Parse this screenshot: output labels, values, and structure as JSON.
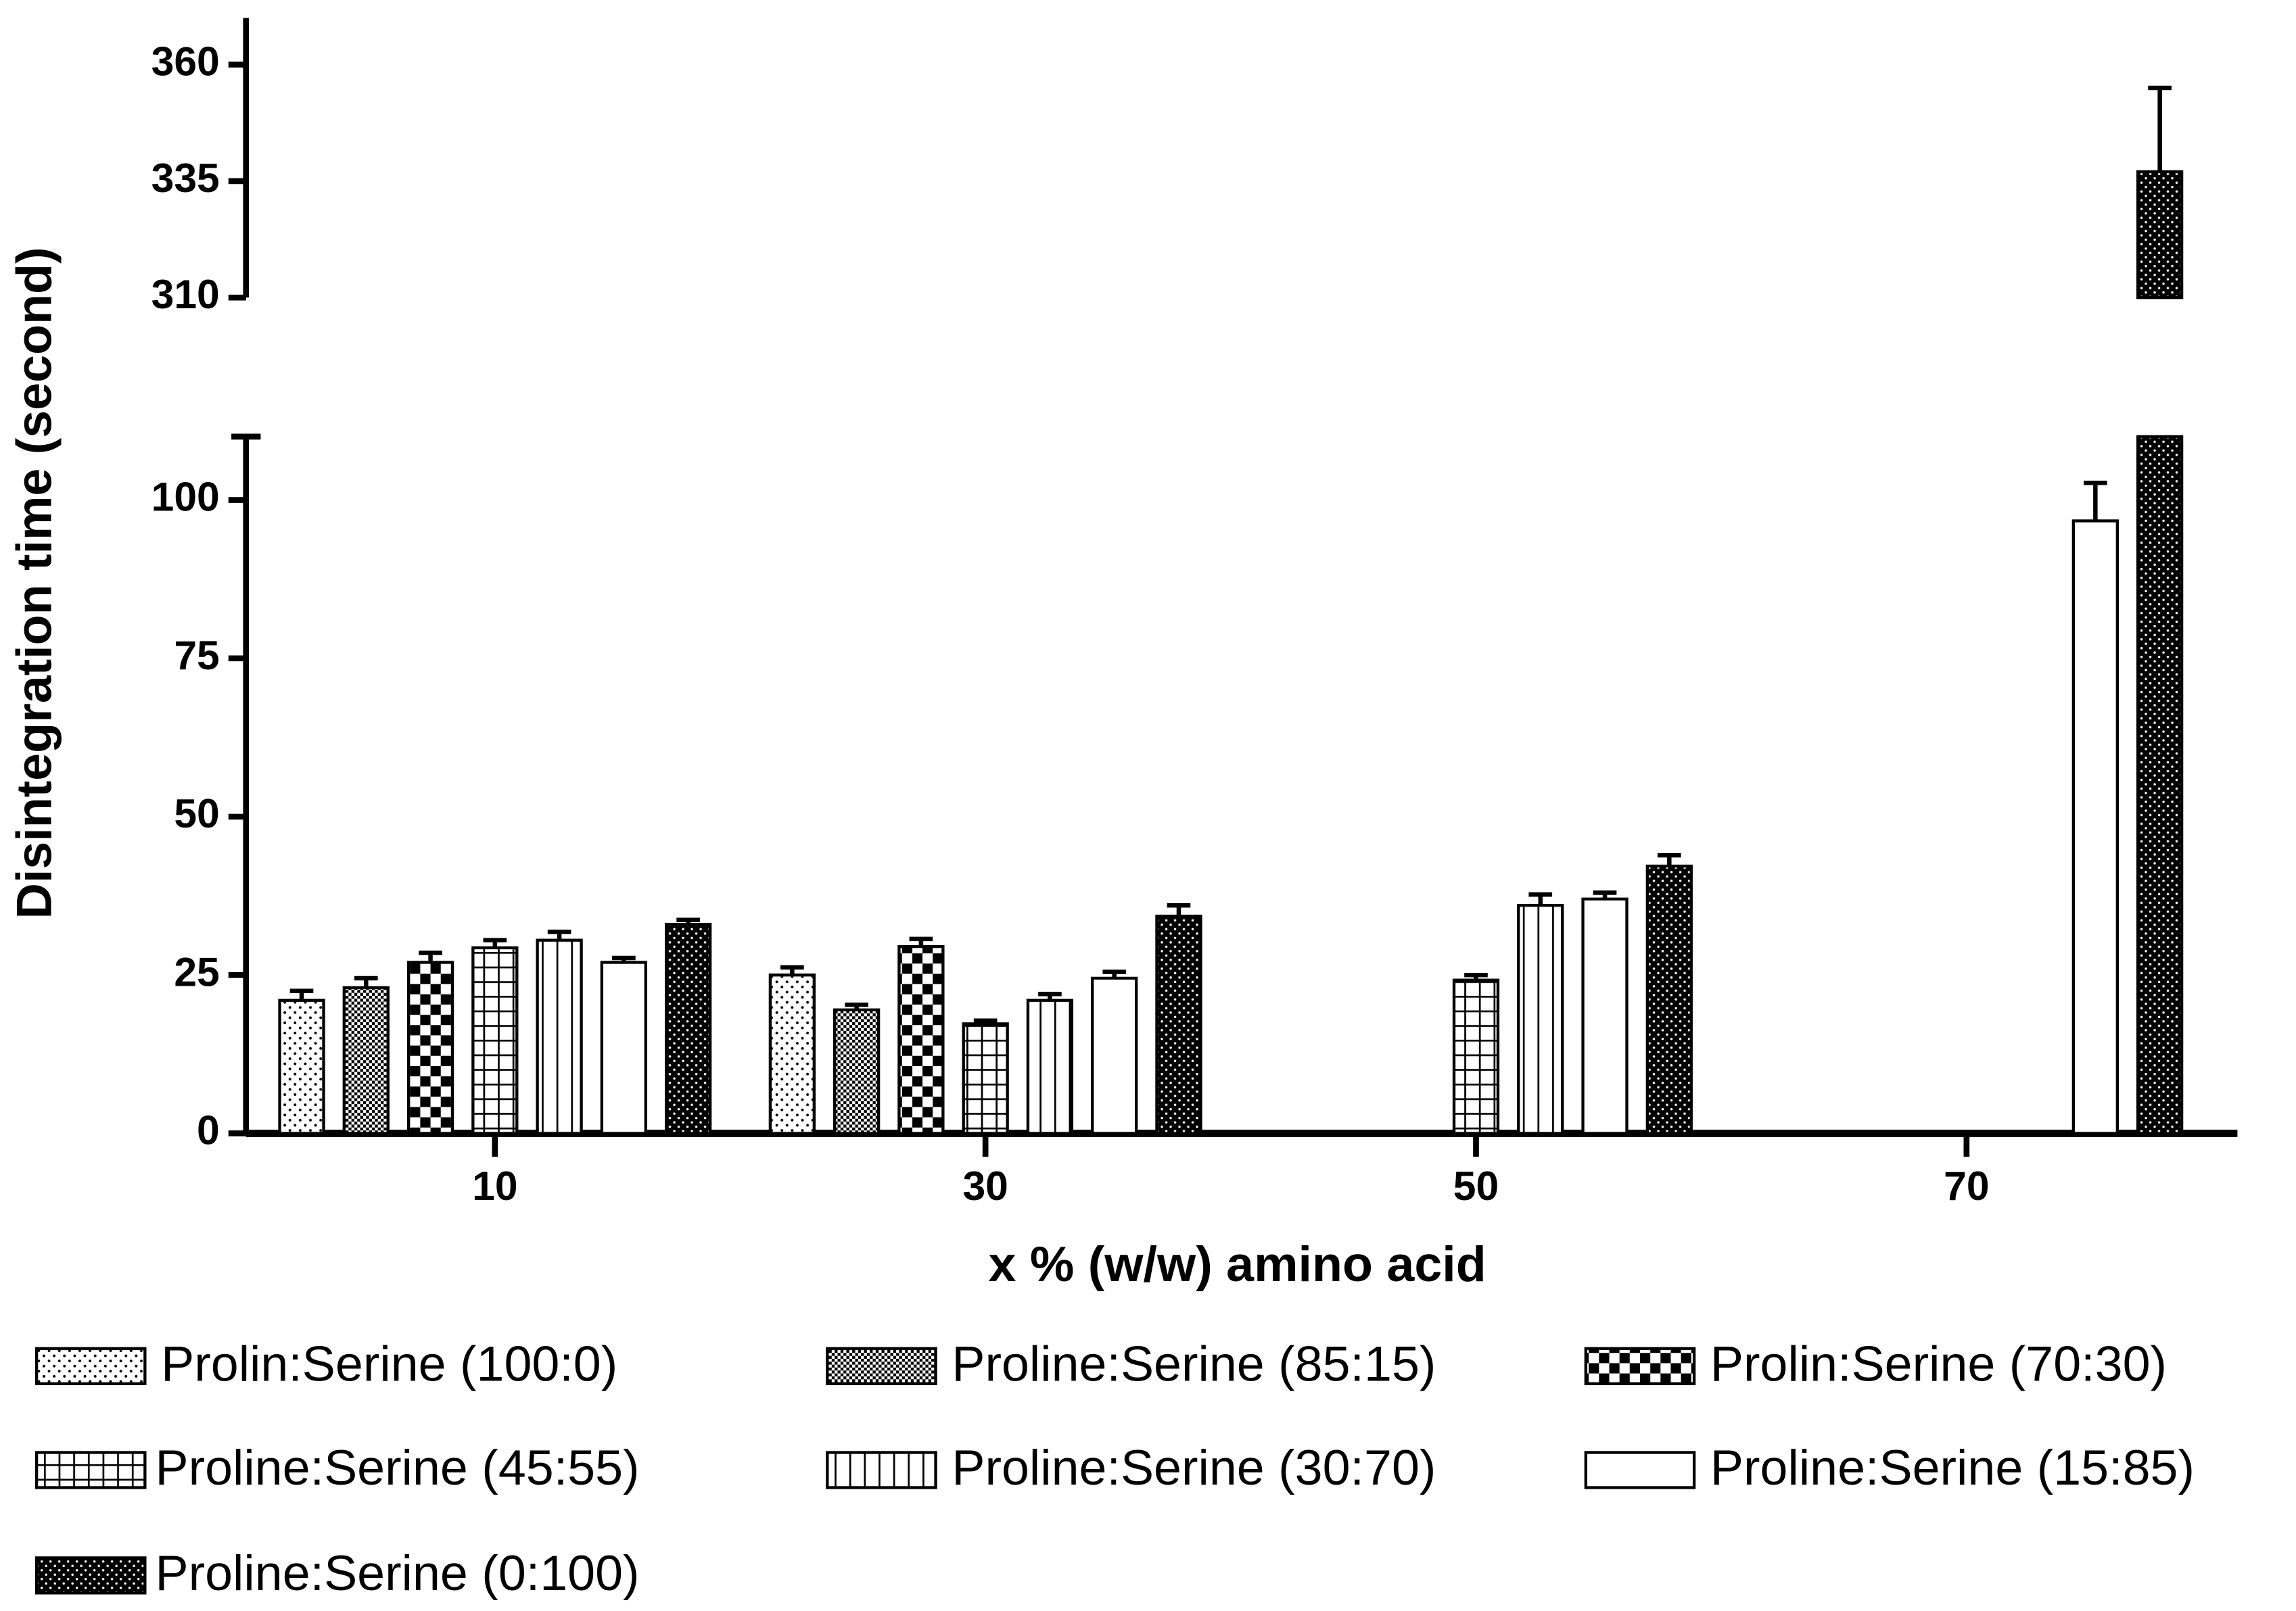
{
  "chart_data": {
    "type": "bar",
    "x_label": "x % (w/w) amino acid",
    "y_label": "Disintegration time (second)",
    "categories": [
      "10",
      "30",
      "50",
      "70"
    ],
    "y_segments": [
      {
        "ylim": [
          0,
          110
        ],
        "yticks": [
          0,
          25,
          50,
          75,
          100
        ]
      },
      {
        "ylim": [
          310,
          370
        ],
        "yticks": [
          310,
          335,
          360
        ]
      }
    ],
    "series": [
      {
        "name": "Prolin:Serine (100:0)",
        "color": "#000000",
        "pattern": "dots",
        "values": [
          21,
          25,
          null,
          null
        ],
        "errors": [
          1.5,
          1.2,
          null,
          null
        ]
      },
      {
        "name": "Proline:Serine (85:15)",
        "color": "#000000",
        "pattern": "dense-checker",
        "values": [
          23,
          19.5,
          null,
          null
        ],
        "errors": [
          1.5,
          0.8,
          null,
          null
        ]
      },
      {
        "name": "Prolin:Serine (70:30)",
        "color": "#000000",
        "pattern": "checker",
        "values": [
          27,
          29.5,
          null,
          null
        ],
        "errors": [
          1.5,
          1.2,
          null,
          null
        ]
      },
      {
        "name": "Proline:Serine (45:55)",
        "color": "#000000",
        "pattern": "grid",
        "values": [
          29.3,
          17.3,
          24.2,
          null
        ],
        "errors": [
          1.2,
          0.5,
          0.8,
          null
        ]
      },
      {
        "name": "Proline:Serine (30:70)",
        "color": "#000000",
        "pattern": "vertical",
        "values": [
          30.5,
          21,
          36,
          null
        ],
        "errors": [
          1.3,
          1,
          1.7,
          null
        ]
      },
      {
        "name": "Proline:Serine (15:85)",
        "color": "#000000",
        "pattern": "none",
        "values": [
          27,
          24.5,
          37,
          96.7
        ],
        "errors": [
          0.7,
          1,
          1,
          6
        ]
      },
      {
        "name": "Proline:Serine (0:100)",
        "color": "#000000",
        "pattern": "dense-dots",
        "values": [
          33,
          34.3,
          42.2,
          337
        ],
        "errors": [
          0.7,
          1.7,
          1.7,
          18
        ]
      }
    ]
  }
}
